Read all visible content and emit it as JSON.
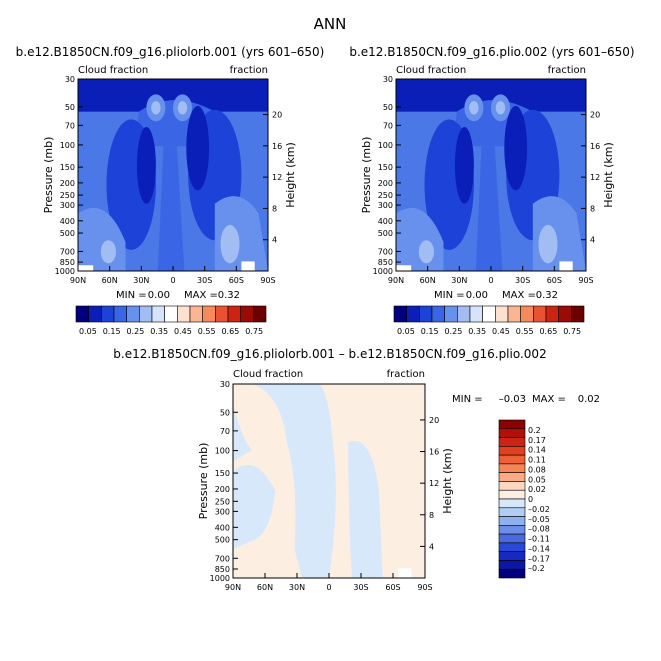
{
  "page_title": "ANN",
  "chart_data": [
    {
      "type": "heatmap",
      "title": "b.e12.B1850CN.f09_g16.pliolorb.001 (yrs 601–650)",
      "left_label": "Cloud fraction",
      "right_label": "fraction",
      "ylabel": "Pressure (mb)",
      "ylabel_right": "Height (km)",
      "x_ticks": [
        "90N",
        "60N",
        "30N",
        "0",
        "30S",
        "60S",
        "90S"
      ],
      "p_ticks": [
        "30",
        "50",
        "70",
        "100",
        "150",
        "200",
        "250",
        "300",
        "400",
        "500",
        "700",
        "850",
        "1000"
      ],
      "km_ticks": [
        "20",
        "16",
        "12",
        "8",
        "4"
      ],
      "stats": {
        "min_label": "MIN =",
        "min": "0.00",
        "max_label": "MAX =",
        "max": "0.32"
      },
      "colorbar_labels": [
        "0.05",
        "0.15",
        "0.25",
        "0.35",
        "0.45",
        "0.55",
        "0.65",
        "0.75"
      ],
      "colorbar_colors": [
        "#00007f",
        "#0a1fb8",
        "#1c42d8",
        "#3a66e6",
        "#6891ee",
        "#a2bcf4",
        "#d6e4fb",
        "#ffffff",
        "#fde1cf",
        "#fbb593",
        "#f58a5d",
        "#e85230",
        "#cc2413",
        "#9c0a05",
        "#6b0000"
      ]
    },
    {
      "type": "heatmap",
      "title": "b.e12.B1850CN.f09_g16.plio.002 (yrs 601–650)",
      "left_label": "Cloud fraction",
      "right_label": "fraction",
      "ylabel": "Pressure (mb)",
      "ylabel_right": "Height (km)",
      "x_ticks": [
        "90N",
        "60N",
        "30N",
        "0",
        "30S",
        "60S",
        "90S"
      ],
      "p_ticks": [
        "30",
        "50",
        "70",
        "100",
        "150",
        "200",
        "250",
        "300",
        "400",
        "500",
        "700",
        "850",
        "1000"
      ],
      "km_ticks": [
        "20",
        "16",
        "12",
        "8",
        "4"
      ],
      "stats": {
        "min_label": "MIN =",
        "min": "0.00",
        "max_label": "MAX =",
        "max": "0.32"
      },
      "colorbar_labels": [
        "0.05",
        "0.15",
        "0.25",
        "0.35",
        "0.45",
        "0.55",
        "0.65",
        "0.75"
      ],
      "colorbar_colors": [
        "#00007f",
        "#0a1fb8",
        "#1c42d8",
        "#3a66e6",
        "#6891ee",
        "#a2bcf4",
        "#d6e4fb",
        "#ffffff",
        "#fde1cf",
        "#fbb593",
        "#f58a5d",
        "#e85230",
        "#cc2413",
        "#9c0a05",
        "#6b0000"
      ]
    },
    {
      "type": "heatmap",
      "title": "b.e12.B1850CN.f09_g16.pliolorb.001 – b.e12.B1850CN.f09_g16.plio.002",
      "left_label": "Cloud fraction",
      "right_label": "fraction",
      "ylabel": "Pressure (mb)",
      "ylabel_right": "Height (km)",
      "x_ticks": [
        "90N",
        "60N",
        "30N",
        "0",
        "30S",
        "60S",
        "90S"
      ],
      "p_ticks": [
        "30",
        "50",
        "70",
        "100",
        "150",
        "200",
        "250",
        "300",
        "400",
        "500",
        "700",
        "850",
        "1000"
      ],
      "km_ticks": [
        "20",
        "16",
        "12",
        "8",
        "4"
      ],
      "stats": {
        "min_label": "MIN =",
        "min": "–0.03",
        "max_label": "MAX =",
        "max": "0.02"
      },
      "colorbar_labels": [
        "0.2",
        "0.17",
        "0.14",
        "0.11",
        "0.08",
        "0.05",
        "0.02",
        "0",
        "–0.02",
        "–0.05",
        "–0.08",
        "–0.11",
        "–0.14",
        "–0.17",
        "–0.2"
      ],
      "colorbar_colors": [
        "#8c0000",
        "#b01008",
        "#cc2414",
        "#e0401f",
        "#ee6035",
        "#f68556",
        "#f9ab86",
        "#fcd8c2",
        "#fdeee2",
        "#d8e8fb",
        "#b0cdf4",
        "#8fb0ee",
        "#6c8ee6",
        "#4a6be0",
        "#2a48d8",
        "#1629c2",
        "#0c17a6",
        "#00007f"
      ]
    }
  ]
}
